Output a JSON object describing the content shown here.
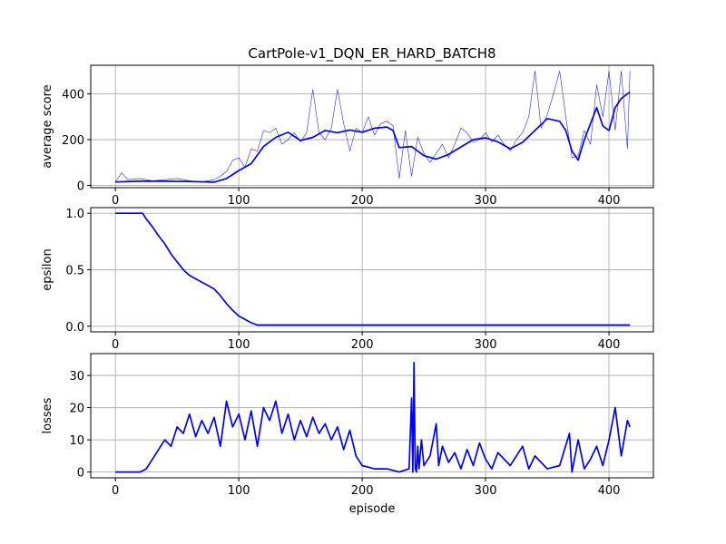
{
  "figure_title": "CartPole-v1_DQN_ER_HARD_BATCH8",
  "colors": {
    "series": "#0000ff",
    "grid": "#b0b0b0",
    "axes": "#000000"
  },
  "chart_data": [
    {
      "type": "line",
      "title": "CartPole-v1_DQN_ER_HARD_BATCH8",
      "xlabel": "",
      "ylabel": "average score",
      "xlim": [
        -20,
        436
      ],
      "ylim": [
        -10,
        525
      ],
      "xticks": [
        0,
        100,
        200,
        300,
        400
      ],
      "yticks": [
        0,
        200,
        400
      ],
      "grid": true,
      "series": [
        {
          "style": "thin",
          "x": [
            0,
            5,
            10,
            20,
            30,
            40,
            50,
            60,
            70,
            80,
            85,
            90,
            95,
            100,
            105,
            110,
            115,
            120,
            125,
            130,
            135,
            140,
            145,
            150,
            155,
            160,
            165,
            170,
            175,
            180,
            185,
            190,
            195,
            200,
            205,
            210,
            215,
            220,
            225,
            230,
            235,
            240,
            245,
            250,
            255,
            260,
            265,
            270,
            275,
            280,
            285,
            290,
            295,
            300,
            305,
            310,
            315,
            320,
            325,
            330,
            335,
            340,
            345,
            350,
            355,
            360,
            365,
            370,
            375,
            380,
            385,
            390,
            395,
            400,
            405,
            410,
            415,
            417
          ],
          "y": [
            15,
            55,
            25,
            30,
            20,
            25,
            30,
            20,
            15,
            25,
            40,
            60,
            110,
            120,
            80,
            160,
            150,
            240,
            230,
            250,
            180,
            200,
            230,
            190,
            230,
            420,
            230,
            200,
            250,
            420,
            270,
            150,
            250,
            230,
            300,
            220,
            270,
            280,
            260,
            30,
            240,
            40,
            210,
            140,
            100,
            140,
            180,
            120,
            180,
            250,
            230,
            190,
            200,
            230,
            190,
            220,
            180,
            150,
            200,
            230,
            300,
            500,
            250,
            310,
            400,
            500,
            300,
            120,
            130,
            240,
            180,
            440,
            300,
            500,
            240,
            500,
            160,
            500
          ]
        },
        {
          "style": "bold",
          "x": [
            0,
            20,
            40,
            60,
            80,
            90,
            100,
            110,
            120,
            130,
            140,
            150,
            160,
            170,
            180,
            190,
            200,
            210,
            220,
            225,
            230,
            240,
            250,
            260,
            270,
            280,
            290,
            300,
            310,
            320,
            330,
            340,
            350,
            360,
            365,
            370,
            375,
            380,
            385,
            390,
            395,
            400,
            405,
            410,
            417
          ],
          "y": [
            15,
            18,
            18,
            17,
            14,
            30,
            65,
            95,
            170,
            210,
            232,
            196,
            210,
            240,
            230,
            242,
            232,
            250,
            255,
            240,
            165,
            170,
            130,
            115,
            135,
            168,
            200,
            208,
            190,
            160,
            188,
            240,
            292,
            280,
            240,
            150,
            110,
            200,
            270,
            340,
            260,
            240,
            340,
            380,
            408
          ]
        }
      ]
    },
    {
      "type": "line",
      "title": "",
      "xlabel": "",
      "ylabel": "epsilon",
      "xlim": [
        -20,
        436
      ],
      "ylim": [
        -0.05,
        1.05
      ],
      "xticks": [
        0,
        100,
        200,
        300,
        400
      ],
      "yticks": [
        "0.0",
        "0.5",
        "1.0"
      ],
      "grid": true,
      "series": [
        {
          "style": "bold",
          "x": [
            0,
            22,
            25,
            30,
            35,
            40,
            45,
            50,
            55,
            60,
            65,
            70,
            75,
            80,
            85,
            90,
            95,
            100,
            105,
            110,
            115,
            120,
            200,
            300,
            400,
            417
          ],
          "y": [
            1.0,
            1.0,
            0.95,
            0.88,
            0.8,
            0.73,
            0.64,
            0.57,
            0.5,
            0.45,
            0.42,
            0.39,
            0.36,
            0.33,
            0.27,
            0.2,
            0.14,
            0.09,
            0.06,
            0.03,
            0.01,
            0.01,
            0.01,
            0.01,
            0.01,
            0.01
          ]
        }
      ]
    },
    {
      "type": "line",
      "title": "",
      "xlabel": "episode",
      "ylabel": "losses",
      "xlim": [
        -20,
        436
      ],
      "ylim": [
        -1.8,
        36.8
      ],
      "xticks": [
        0,
        100,
        200,
        300,
        400
      ],
      "yticks": [
        0,
        10,
        20,
        30
      ],
      "grid": true,
      "series": [
        {
          "style": "bold",
          "x": [
            0,
            20,
            25,
            30,
            35,
            40,
            45,
            50,
            55,
            60,
            65,
            70,
            75,
            80,
            85,
            90,
            95,
            100,
            105,
            110,
            115,
            120,
            125,
            130,
            135,
            140,
            145,
            150,
            155,
            160,
            165,
            170,
            175,
            180,
            185,
            190,
            195,
            200,
            210,
            220,
            230,
            238,
            240,
            241,
            242,
            243,
            244,
            245,
            246,
            248,
            250,
            255,
            260,
            262,
            265,
            270,
            275,
            280,
            285,
            290,
            295,
            300,
            305,
            310,
            320,
            330,
            335,
            340,
            350,
            360,
            368,
            370,
            375,
            380,
            385,
            390,
            395,
            400,
            405,
            410,
            415,
            417
          ],
          "y": [
            0,
            0,
            1,
            4,
            7,
            10,
            8,
            14,
            12,
            18,
            11,
            16,
            12,
            17,
            8,
            22,
            14,
            18,
            10,
            19,
            8,
            20,
            16,
            22,
            12,
            18,
            10,
            16,
            11,
            17,
            12,
            15,
            10,
            14,
            7,
            13,
            5,
            2,
            1,
            1,
            0,
            1,
            23,
            0,
            34,
            1,
            0,
            8,
            1,
            10,
            2,
            5,
            15,
            2,
            8,
            3,
            6,
            1,
            7,
            2,
            9,
            4,
            1,
            6,
            2,
            8,
            1,
            5,
            1,
            2,
            12,
            0,
            10,
            1,
            4,
            8,
            2,
            10,
            20,
            5,
            16,
            14
          ]
        }
      ]
    }
  ]
}
